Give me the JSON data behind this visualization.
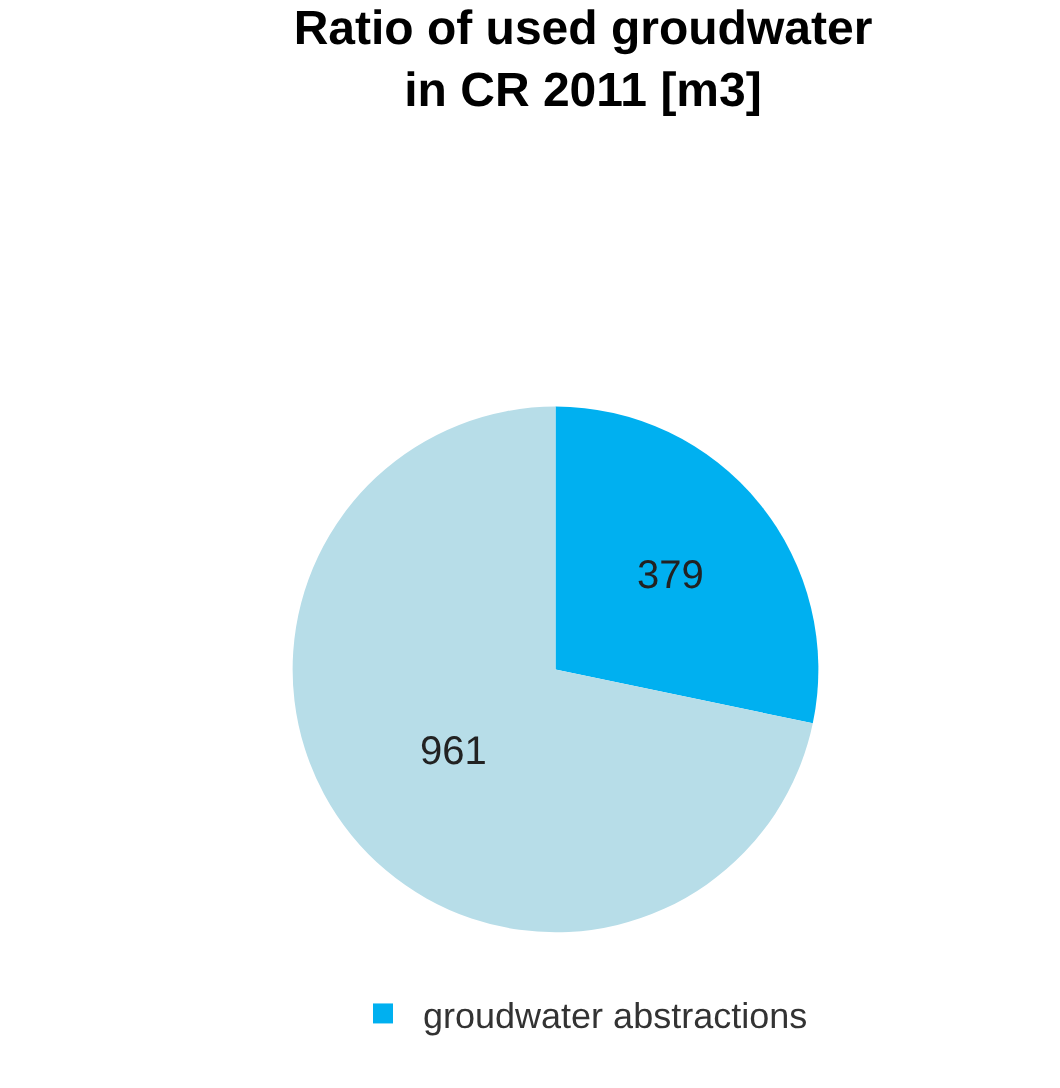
{
  "chart_data": {
    "type": "pie",
    "title": "Ratio of used groudwater\nin CR 2011 [m3]",
    "categories": [
      "groudwater abstractions",
      null
    ],
    "values": [
      379,
      961
    ],
    "colors": [
      "#00b0f0",
      "#b7dde8"
    ],
    "data_labels": true,
    "legend": "bottom"
  }
}
